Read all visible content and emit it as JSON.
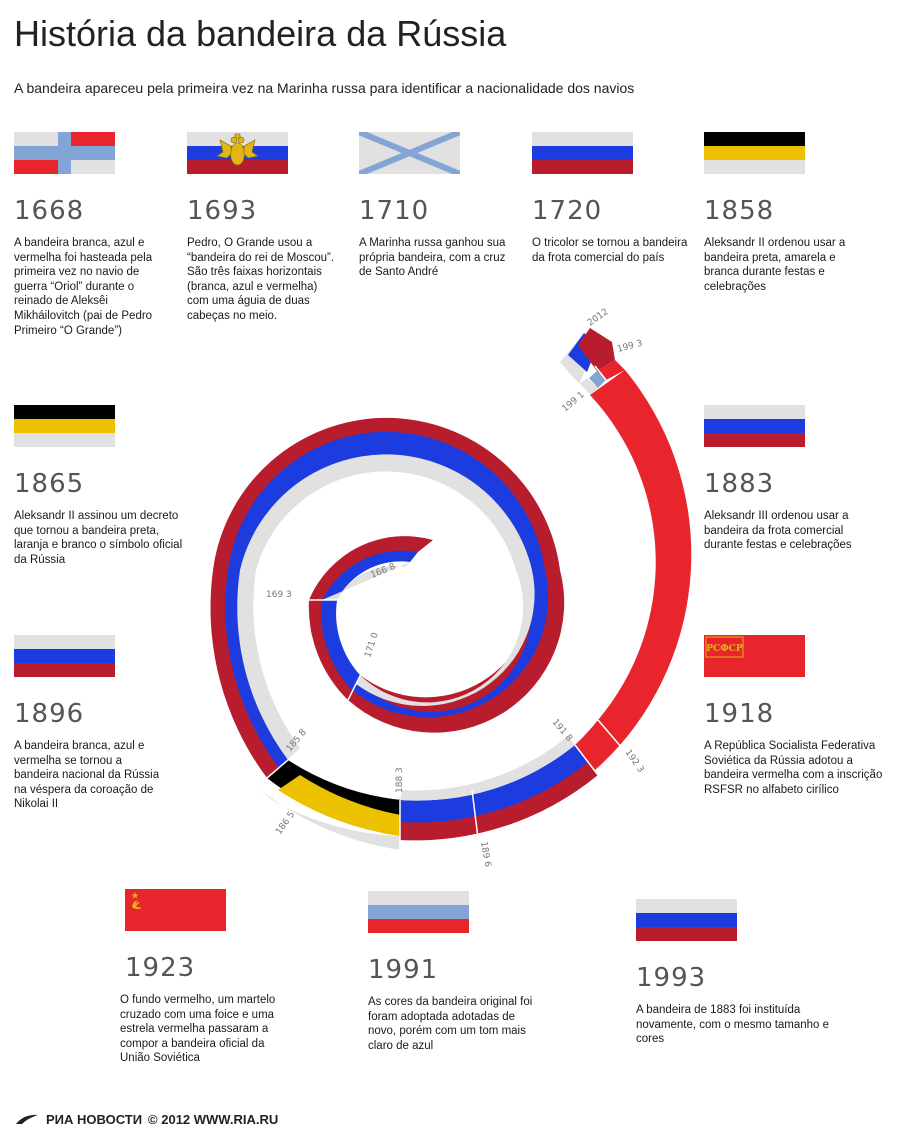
{
  "title": "História da bandeira da Rússia",
  "subtitle": "A bandeira apareceu pela primeira vez  na Marinha russa para identificar a nacionalidade dos navios",
  "colors": {
    "white": "#e1e1e1",
    "blue": "#1d3ce0",
    "red": "#b81d2e",
    "bright_red": "#e8242c",
    "light_blue": "#83a5d6",
    "black": "#000000",
    "yellow": "#ebc100"
  },
  "entries": [
    {
      "year": "1668",
      "desc": "A bandeira branca, azul e vermelha  foi hasteada pela primeira vez no navio de guerra “Oriol” durante o reinado de Aleksêi Mikháilovitch (pai de Pedro Primeiro “O Grande”)",
      "flag": "1668-flag"
    },
    {
      "year": "1693",
      "desc": "Pedro, O Grande usou a “bandeira do rei de Moscou”. São três faixas horizontais (branca, azul e vermelha) com uma águia de duas cabeças no meio.",
      "flag": "tricolor-eagle-flag"
    },
    {
      "year": "1710",
      "desc": "A Marinha russa ganhou sua própria bandeira, com a cruz de  Santo André",
      "flag": "st-andrew-flag"
    },
    {
      "year": "1720",
      "desc": "O tricolor se tornou a bandeira da frota comercial do país",
      "flag": "tricolor-flag"
    },
    {
      "year": "1858",
      "desc": "Aleksandr II ordenou usar a bandeira preta, amarela e branca durante festas e celebrações",
      "flag": "imperial-flag"
    },
    {
      "year": "1865",
      "desc": "Aleksandr II assinou um decreto que tornou  a bandeira preta, laranja e branco o símbolo oficial da Rússia",
      "flag": "imperial-flag"
    },
    {
      "year": "1883",
      "desc": "Aleksandr III ordenou usar a bandeira da frota comercial durante festas e celebrações",
      "flag": "tricolor-flag"
    },
    {
      "year": "1896",
      "desc": "A bandeira branca, azul e vermelha se tornou a bandeira nacional da Rússia na véspera da coroação de Nikolai II",
      "flag": "tricolor-flag"
    },
    {
      "year": "1918",
      "desc": "A República Socialista Federativa Soviética da Rússia  adotou a bandeira vermelha com a inscrição RSFSR no alfabeto cirílico",
      "flag": "rsfsr-flag",
      "flag_text": "РСФСР"
    },
    {
      "year": "1923",
      "desc": "O fundo vermelho, um martelo cruzado com uma foice e uma estrela vermelha passaram a compor a bandeira oficial da União Soviética",
      "flag": "ussr-flag"
    },
    {
      "year": "1991",
      "desc": "As cores da bandeira original foi foram adoptada adotadas de novo, porém com um tom mais claro de azul",
      "flag": "light-tricolor-flag"
    },
    {
      "year": "1993",
      "desc": "A bandeira de 1883 foi instituída novamente, com o mesmo tamanho e cores",
      "flag": "tricolor-flag"
    }
  ],
  "spiral_labels": [
    "166 8",
    "169 3",
    "171 0",
    "185 8",
    "186 5",
    "188 3",
    "189 6",
    "191 8",
    "192 3",
    "199 1",
    "199 3",
    "2012"
  ],
  "footer": {
    "brand": "РИА НОВОСТИ",
    "copyright": "© 2012 WWW.RIA.RU"
  }
}
